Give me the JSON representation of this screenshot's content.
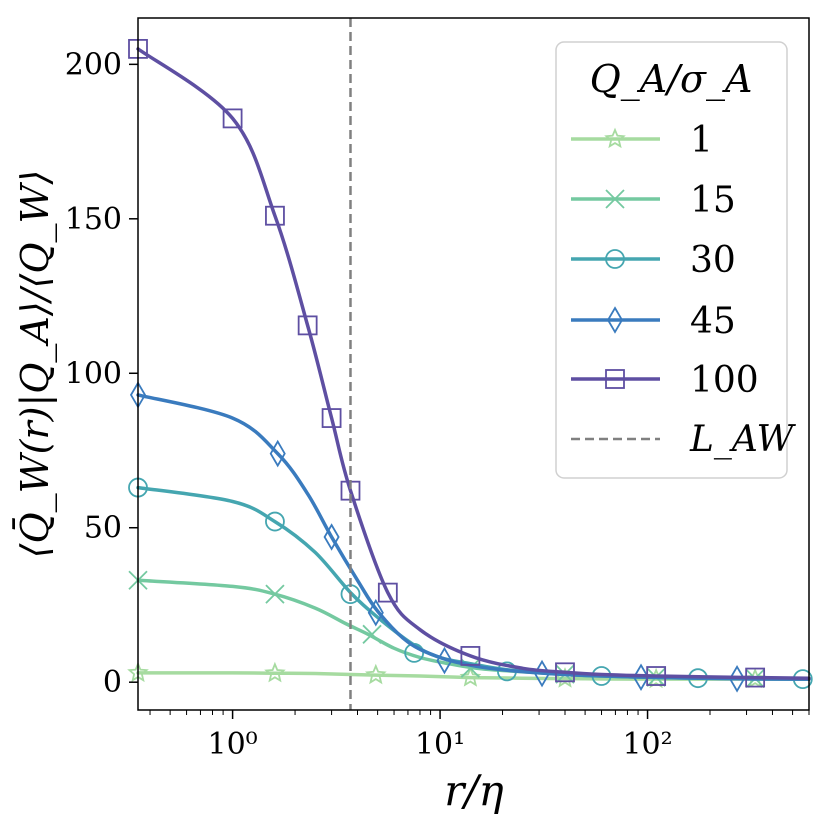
{
  "chart_data": {
    "type": "line",
    "xscale": "log",
    "xlim": [
      0.35,
      600
    ],
    "ylim": [
      -9,
      215
    ],
    "xlabel": "r/η",
    "ylabel": "⟨Q̄_W(r)|Q_A⟩/⟨Q_W⟩",
    "xticks": [
      {
        "value": 1,
        "label": "10⁰"
      },
      {
        "value": 10,
        "label": "10¹"
      },
      {
        "value": 100,
        "label": "10²"
      }
    ],
    "yticks": [
      {
        "value": 0,
        "label": "0"
      },
      {
        "value": 50,
        "label": "50"
      },
      {
        "value": 100,
        "label": "100"
      },
      {
        "value": 150,
        "label": "150"
      },
      {
        "value": 200,
        "label": "200"
      }
    ],
    "legend": {
      "title": "Q_A/σ_A",
      "position": "top-right"
    },
    "vline": {
      "x": 3.7,
      "name": "L_AW",
      "color": "#808080"
    },
    "series": [
      {
        "name": "1",
        "color": "#a6dba0",
        "marker": "star",
        "x": [
          0.35,
          1.0,
          1.6,
          2.5,
          4.9,
          8,
          14,
          25,
          50,
          100,
          300,
          600
        ],
        "y": [
          3,
          3,
          2.9,
          2.8,
          2.3,
          2.0,
          1.5,
          1.3,
          1.1,
          1.0,
          1.0,
          1.0
        ],
        "mx": [
          0.35,
          1.6,
          4.9,
          14,
          40,
          110,
          330
        ],
        "my": [
          3,
          2.9,
          2.3,
          1.5,
          1.2,
          1.0,
          1.0
        ]
      },
      {
        "name": "15",
        "color": "#74c9a0",
        "marker": "x",
        "x": [
          0.35,
          1.0,
          1.6,
          2.5,
          3.5,
          4.5,
          6,
          8,
          11,
          15,
          20,
          30,
          50,
          100,
          300,
          600
        ],
        "y": [
          33,
          31,
          28.5,
          24,
          19,
          15.5,
          11,
          8,
          6,
          4.5,
          3.8,
          3,
          2.2,
          1.6,
          1.2,
          1.0
        ],
        "mx": [
          0.35,
          1.6,
          4.7,
          14,
          40,
          110,
          330
        ],
        "my": [
          33,
          28.5,
          15.5,
          4.5,
          2.6,
          1.6,
          1.2
        ]
      },
      {
        "name": "30",
        "color": "#45a6b0",
        "marker": "circle",
        "x": [
          0.35,
          1.0,
          1.6,
          2.5,
          3.7,
          5,
          7.5,
          10,
          14,
          21,
          40,
          60,
          100,
          175,
          300,
          600
        ],
        "y": [
          63,
          58.5,
          52,
          42,
          29,
          21,
          12,
          8,
          6,
          4,
          2.5,
          2,
          1.6,
          1.3,
          1.1,
          1.0
        ],
        "mx": [
          0.35,
          1.6,
          3.7,
          7.5,
          21,
          60,
          175,
          560
        ],
        "my": [
          63,
          52,
          28.5,
          9.5,
          3.5,
          2,
          1.3,
          1.0
        ]
      },
      {
        "name": "45",
        "color": "#3a7bbe",
        "marker": "diamond",
        "x": [
          0.35,
          1.0,
          1.65,
          2.3,
          3.0,
          4.0,
          5,
          7,
          10,
          14,
          20,
          30,
          50,
          100,
          270,
          600
        ],
        "y": [
          93,
          85.5,
          74,
          61,
          47,
          33,
          23,
          13,
          8,
          5.5,
          4,
          3,
          2.2,
          1.6,
          1.1,
          1.0
        ],
        "mx": [
          0.35,
          1.65,
          3.0,
          4.9,
          10.5,
          31,
          93,
          270
        ],
        "my": [
          93,
          74,
          47,
          22.5,
          7,
          2.8,
          1.6,
          1.1
        ]
      },
      {
        "name": "100",
        "color": "#5e4fa2",
        "marker": "square",
        "x": [
          0.35,
          1.0,
          1.6,
          2.3,
          3.0,
          3.7,
          5.6,
          8,
          14,
          25,
          40,
          60,
          110,
          330,
          600
        ],
        "y": [
          205,
          182.5,
          151,
          115.5,
          85.5,
          62,
          29,
          17,
          8.5,
          4.5,
          3.2,
          2.5,
          2,
          1.5,
          1.3
        ],
        "mx": [
          0.35,
          1.0,
          1.6,
          2.3,
          3.0,
          3.7,
          5.6,
          14,
          40,
          110,
          330
        ],
        "my": [
          205,
          182.5,
          151,
          115.5,
          85.5,
          62,
          29,
          8.5,
          3.2,
          2,
          1.5
        ]
      }
    ]
  }
}
